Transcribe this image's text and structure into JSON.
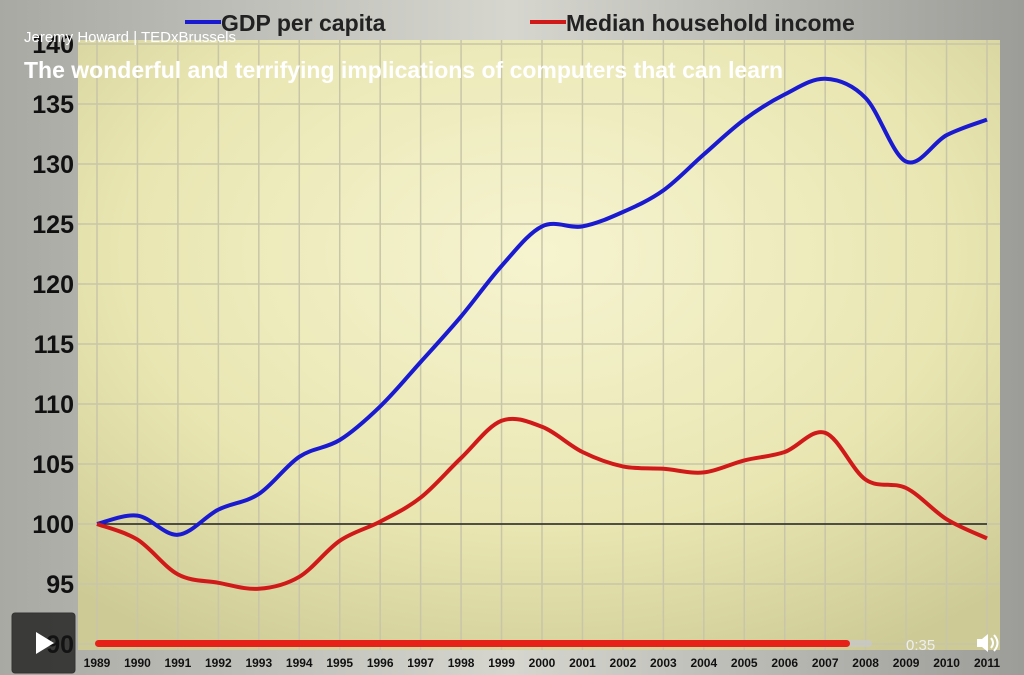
{
  "player": {
    "speaker": "Jeremy Howard | TEDxBrussels",
    "title": "The wonderful and terrifying implications of computers that can learn",
    "time": "0:35"
  },
  "chart_data": {
    "type": "line",
    "categories": [
      "1989",
      "1990",
      "1991",
      "1992",
      "1993",
      "1994",
      "1995",
      "1996",
      "1997",
      "1998",
      "1999",
      "2000",
      "2001",
      "2002",
      "2003",
      "2004",
      "2005",
      "2006",
      "2007",
      "2008",
      "2009",
      "2010",
      "2011"
    ],
    "series": [
      {
        "name": "GDP per capita",
        "color": "#1a1ad0",
        "values": [
          100,
          100.7,
          99.1,
          101.2,
          102.5,
          105.6,
          107,
          109.8,
          113.5,
          117.3,
          121.5,
          124.8,
          124.8,
          126,
          127.8,
          130.8,
          133.7,
          135.8,
          137.1,
          135.5,
          130.2,
          132.4,
          133.7
        ]
      },
      {
        "name": "Median household income",
        "color": "#d01a1a",
        "values": [
          100,
          98.7,
          95.8,
          95.1,
          94.6,
          95.6,
          98.6,
          100.2,
          102.2,
          105.5,
          108.6,
          108.1,
          106,
          104.8,
          104.6,
          104.3,
          105.3,
          106,
          107.6,
          103.7,
          103,
          100.4,
          98.8
        ]
      }
    ],
    "ylim": [
      90,
      140
    ],
    "yticks": [
      90,
      95,
      100,
      105,
      110,
      115,
      120,
      125,
      130,
      135,
      140
    ],
    "reference_line": 100,
    "grid": true
  }
}
